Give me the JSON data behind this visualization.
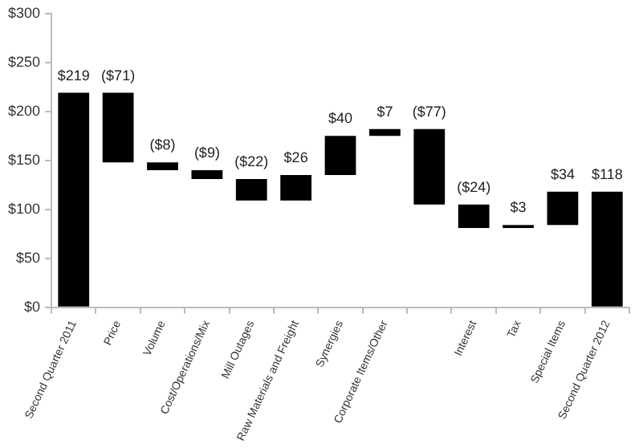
{
  "chart_data": {
    "type": "bar",
    "categories": [
      "Second Quarter 2011",
      "Price",
      "Volume",
      "Cost/Operations/Mix",
      "Mill Outages",
      "Raw Materials and Freight",
      "Synergies",
      "Corporate Items/Other",
      null,
      "Interest",
      "Tax",
      "Special Items",
      "Second Quarter 2012"
    ],
    "values": [
      219,
      -71,
      -8,
      -9,
      -22,
      26,
      40,
      7,
      -77,
      -24,
      3,
      34,
      118
    ],
    "base": [
      0,
      219,
      148,
      140,
      131,
      109,
      135,
      175,
      182,
      105,
      81,
      84,
      0
    ],
    "color": "#000000",
    "value_labels": [
      "$219",
      "($71)",
      "($8)",
      "($9)",
      "($22)",
      "$26",
      "$40",
      "$7",
      "($77)",
      "($24)",
      "$3",
      "$34",
      "$118"
    ],
    "ylim": [
      0,
      300
    ],
    "yticks": [
      {
        "value": 0,
        "label": "$0"
      },
      {
        "value": 50,
        "label": "$50"
      },
      {
        "value": 100,
        "label": "$100"
      },
      {
        "value": 150,
        "label": "$150"
      },
      {
        "value": 200,
        "label": "$200"
      },
      {
        "value": 250,
        "label": "$250"
      },
      {
        "value": 300,
        "label": "$300"
      }
    ],
    "grid": false,
    "legend": false
  }
}
